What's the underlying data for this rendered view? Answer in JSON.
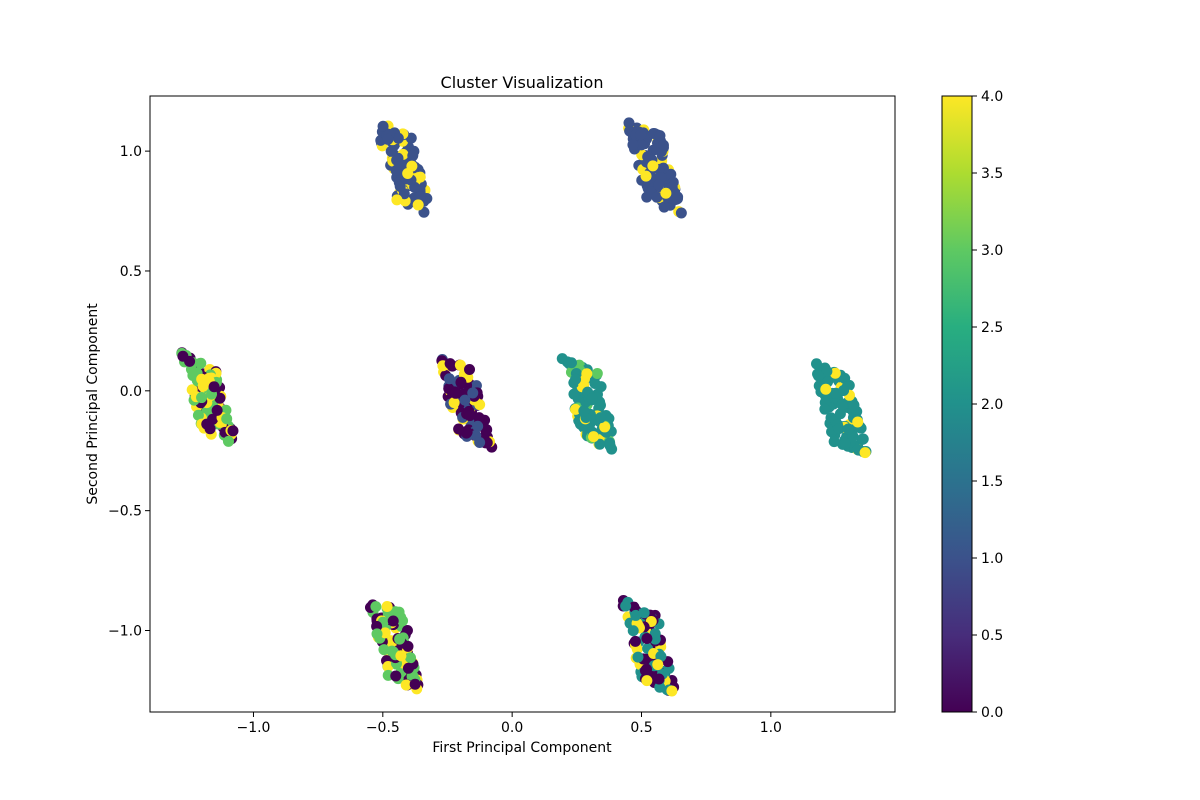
{
  "chart_data": {
    "type": "scatter",
    "title": "Cluster Visualization",
    "xlabel": "First Principal Component",
    "ylabel": "Second Principal Component",
    "xlim": [
      -1.4,
      1.48
    ],
    "ylim": [
      -1.34,
      1.23
    ],
    "xticks": [
      -1.0,
      -0.5,
      0.0,
      0.5,
      1.0
    ],
    "xtick_labels": [
      "−1.0",
      "−0.5",
      "0.0",
      "0.5",
      "1.0"
    ],
    "yticks": [
      -1.0,
      -0.5,
      0.0,
      0.5,
      1.0
    ],
    "ytick_labels": [
      "−1.0",
      "−0.5",
      "0.0",
      "0.5",
      "1.0"
    ],
    "grid": false,
    "colormap": "viridis",
    "colorbar": {
      "range": [
        0.0,
        4.0
      ],
      "ticks": [
        0.0,
        0.5,
        1.0,
        1.5,
        2.0,
        2.5,
        3.0,
        3.5,
        4.0
      ],
      "tick_labels": [
        "0.0",
        "0.5",
        "1.0",
        "1.5",
        "2.0",
        "2.5",
        "3.0",
        "3.5",
        "4.0"
      ]
    },
    "clusters": [
      {
        "center": [
          -0.42,
          0.93
        ],
        "values": [
          1,
          1,
          1,
          1,
          1,
          1,
          1,
          1,
          4,
          4,
          4,
          1,
          1,
          4,
          1
        ]
      },
      {
        "center": [
          0.55,
          0.93
        ],
        "values": [
          1,
          1,
          1,
          1,
          1,
          1,
          1,
          1,
          1,
          4,
          4,
          1,
          1,
          1,
          4
        ]
      },
      {
        "center": [
          -1.17,
          -0.04
        ],
        "values": [
          3,
          3,
          3,
          4,
          4,
          0,
          0,
          0,
          3,
          4,
          0,
          0,
          3,
          4,
          0
        ]
      },
      {
        "center": [
          -0.18,
          -0.05
        ],
        "values": [
          0,
          0,
          0,
          1,
          1,
          4,
          4,
          0,
          0,
          1,
          4,
          0,
          0,
          1,
          0
        ]
      },
      {
        "center": [
          0.3,
          -0.06
        ],
        "values": [
          2,
          2,
          2,
          2,
          2,
          4,
          4,
          2,
          2,
          2,
          3,
          2,
          4,
          2,
          2
        ]
      },
      {
        "center": [
          1.27,
          -0.08
        ],
        "values": [
          2,
          2,
          2,
          2,
          2,
          2,
          2,
          2,
          2,
          4,
          4,
          2,
          2,
          2,
          2
        ]
      },
      {
        "center": [
          -0.45,
          -1.06
        ],
        "values": [
          3,
          3,
          3,
          4,
          4,
          4,
          0,
          0,
          0,
          0,
          3,
          3,
          0,
          4,
          3
        ]
      },
      {
        "center": [
          0.53,
          -1.07
        ],
        "values": [
          2,
          2,
          2,
          0,
          0,
          0,
          4,
          4,
          0,
          2,
          2,
          0,
          4,
          2,
          0
        ]
      }
    ]
  }
}
